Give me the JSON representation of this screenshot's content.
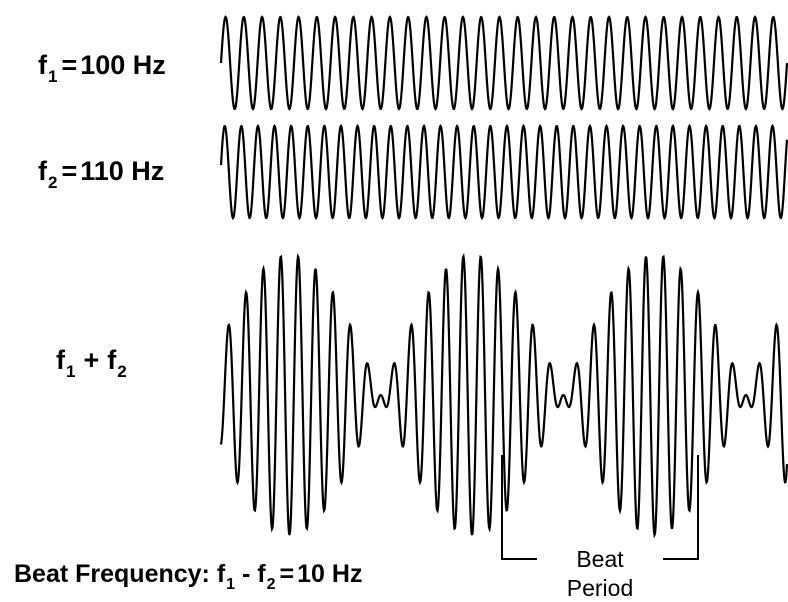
{
  "waves": {
    "f1": {
      "name": "f",
      "sub": "1",
      "eq": "=",
      "value": "100 Hz",
      "frequency_hz": 100
    },
    "f2": {
      "name": "f",
      "sub": "2",
      "eq": "=",
      "value": "110 Hz",
      "frequency_hz": 110
    },
    "sum": {
      "a": "f",
      "a_sub": "1",
      "op": "+",
      "b": "f",
      "b_sub": "2"
    }
  },
  "beat": {
    "prefix": "Beat Frequency: ",
    "a": "f",
    "a_sub": "1",
    "op": " - ",
    "b": "f",
    "b_sub": "2",
    "eq": "=",
    "value": "10 Hz",
    "frequency_hz": 10
  },
  "bracket": {
    "line1": "Beat",
    "line2": "Period"
  },
  "colors": {
    "stroke": "#000000",
    "background": "#ffffff"
  }
}
